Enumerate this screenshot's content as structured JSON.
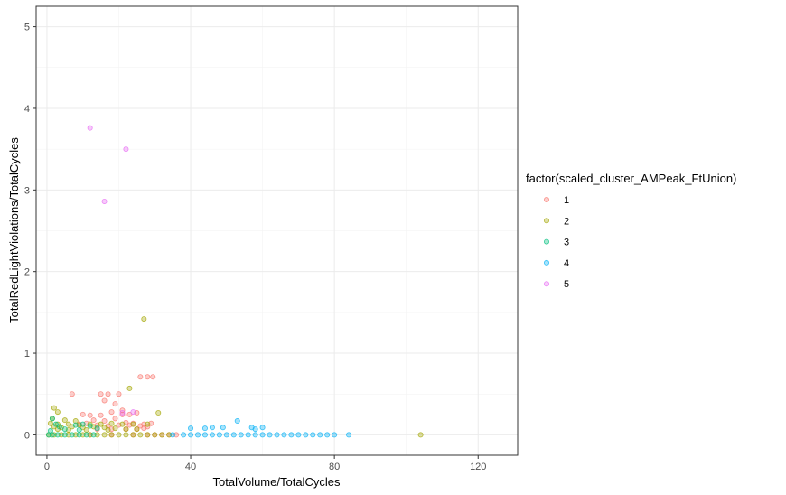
{
  "chart_data": {
    "type": "scatter",
    "title": "",
    "xlabel": "TotalVolume/TotalCycles",
    "ylabel": "TotalRedLightViolations/TotalCycles",
    "xlim": [
      -3,
      131
    ],
    "ylim": [
      -0.25,
      5.25
    ],
    "x_ticks": [
      0,
      40,
      80,
      120
    ],
    "y_ticks": [
      0,
      1,
      2,
      3,
      4,
      5
    ],
    "x_tick_labels": [
      "0",
      "40",
      "80",
      "120"
    ],
    "y_tick_labels": [
      "0",
      "1",
      "2",
      "3",
      "4",
      "5"
    ],
    "grid": true,
    "legend": {
      "title": "factor(scaled_cluster_AMPeak_FtUnion)",
      "position": "right"
    },
    "series": [
      {
        "name": "1",
        "color": "#F8766D",
        "points": [
          [
            7,
            0.5
          ],
          [
            15,
            0.5
          ],
          [
            17,
            0.5
          ],
          [
            20,
            0.5
          ],
          [
            26,
            0.71
          ],
          [
            28,
            0.71
          ],
          [
            29.5,
            0.71
          ],
          [
            10,
            0.25
          ],
          [
            12,
            0.24
          ],
          [
            15,
            0.24
          ],
          [
            18,
            0.28
          ],
          [
            21,
            0.25
          ],
          [
            23,
            0.25
          ],
          [
            25,
            0.27
          ],
          [
            13,
            0.18
          ],
          [
            16,
            0.17
          ],
          [
            19,
            0.2
          ],
          [
            22,
            0.15
          ],
          [
            24,
            0.14
          ],
          [
            27,
            0.13
          ],
          [
            29,
            0.14
          ],
          [
            9,
            0.13
          ],
          [
            11,
            0.14
          ],
          [
            14,
            0.12
          ],
          [
            17,
            0.11
          ],
          [
            20,
            0.12
          ],
          [
            23,
            0.12
          ],
          [
            26,
            0.11
          ],
          [
            28,
            0.1
          ],
          [
            16,
            0.42
          ],
          [
            19,
            0.38
          ],
          [
            21,
            0.3
          ],
          [
            14,
            0.07
          ],
          [
            18,
            0.07
          ],
          [
            22,
            0.07
          ],
          [
            25,
            0.07
          ],
          [
            27,
            0.08
          ],
          [
            30,
            0
          ],
          [
            32,
            0
          ],
          [
            34,
            0
          ],
          [
            36,
            0
          ],
          [
            12,
            0
          ],
          [
            18,
            0
          ],
          [
            24,
            0
          ],
          [
            28,
            0
          ]
        ]
      },
      {
        "name": "2",
        "color": "#A3A500",
        "points": [
          [
            27,
            1.42
          ],
          [
            23,
            0.57
          ],
          [
            2,
            0.33
          ],
          [
            3,
            0.28
          ],
          [
            1.5,
            0.2
          ],
          [
            5,
            0.18
          ],
          [
            8,
            0.17
          ],
          [
            1,
            0.14
          ],
          [
            3,
            0.13
          ],
          [
            6,
            0.13
          ],
          [
            9,
            0.12
          ],
          [
            12,
            0.13
          ],
          [
            15,
            0.13
          ],
          [
            18,
            0.14
          ],
          [
            21,
            0.13
          ],
          [
            24,
            0.13
          ],
          [
            28,
            0.13
          ],
          [
            31,
            0.27
          ],
          [
            2,
            0.1
          ],
          [
            4,
            0.09
          ],
          [
            7,
            0.1
          ],
          [
            10,
            0.09
          ],
          [
            13,
            0.1
          ],
          [
            16,
            0.09
          ],
          [
            19,
            0.08
          ],
          [
            22,
            0.07
          ],
          [
            25,
            0.07
          ],
          [
            3,
            0.07
          ],
          [
            6,
            0.06
          ],
          [
            11,
            0.06
          ],
          [
            17,
            0.06
          ],
          [
            104,
            0
          ],
          [
            0.5,
            0
          ],
          [
            2,
            0
          ],
          [
            4,
            0
          ],
          [
            6,
            0
          ],
          [
            8,
            0
          ],
          [
            10,
            0
          ],
          [
            12,
            0
          ],
          [
            14,
            0
          ],
          [
            16,
            0
          ],
          [
            18,
            0
          ],
          [
            20,
            0
          ],
          [
            22,
            0
          ],
          [
            24,
            0
          ],
          [
            26,
            0
          ],
          [
            28,
            0
          ],
          [
            30,
            0
          ],
          [
            32,
            0
          ],
          [
            34,
            0
          ]
        ]
      },
      {
        "name": "3",
        "color": "#00BF7D",
        "points": [
          [
            1.5,
            0.2
          ],
          [
            2.5,
            0.13
          ],
          [
            3.5,
            0.1
          ],
          [
            8,
            0.12
          ],
          [
            10,
            0.13
          ],
          [
            12,
            0.11
          ],
          [
            14,
            0.08
          ],
          [
            5,
            0.07
          ],
          [
            9,
            0.06
          ],
          [
            1,
            0.05
          ],
          [
            0.5,
            0
          ],
          [
            1.5,
            0
          ],
          [
            3,
            0
          ],
          [
            5,
            0
          ],
          [
            7,
            0
          ],
          [
            9,
            0
          ],
          [
            11,
            0
          ],
          [
            13,
            0
          ]
        ]
      },
      {
        "name": "4",
        "color": "#00B0F6",
        "points": [
          [
            53,
            0.17
          ],
          [
            40,
            0.08
          ],
          [
            44,
            0.08
          ],
          [
            46,
            0.09
          ],
          [
            49,
            0.09
          ],
          [
            57,
            0.09
          ],
          [
            60,
            0.09
          ],
          [
            58,
            0.07
          ],
          [
            35,
            0
          ],
          [
            38,
            0
          ],
          [
            40,
            0
          ],
          [
            42,
            0
          ],
          [
            44,
            0
          ],
          [
            46,
            0
          ],
          [
            48,
            0
          ],
          [
            50,
            0
          ],
          [
            52,
            0
          ],
          [
            54,
            0
          ],
          [
            56,
            0
          ],
          [
            58,
            0
          ],
          [
            60,
            0
          ],
          [
            62,
            0
          ],
          [
            64,
            0
          ],
          [
            66,
            0
          ],
          [
            68,
            0
          ],
          [
            70,
            0
          ],
          [
            72,
            0
          ],
          [
            74,
            0
          ],
          [
            76,
            0
          ],
          [
            78,
            0
          ],
          [
            80,
            0
          ],
          [
            84,
            0
          ]
        ]
      },
      {
        "name": "5",
        "color": "#E76BF3",
        "points": [
          [
            12,
            3.76
          ],
          [
            22,
            3.5
          ],
          [
            16,
            2.86
          ],
          [
            24,
            0.28
          ],
          [
            21,
            0.27
          ]
        ]
      }
    ]
  }
}
